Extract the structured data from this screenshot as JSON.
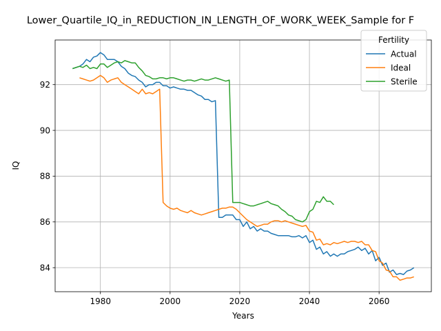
{
  "chart_data": {
    "type": "line",
    "title": "Lower_Quartile_IQ_in_REDUCTION_IN_LENGTH_OF_WORK_WEEK_Sample for F",
    "xlabel": "Years",
    "ylabel": "IQ",
    "xlim": [
      1967,
      2075
    ],
    "ylim": [
      82.95,
      93.95
    ],
    "xticks": [
      1980,
      2000,
      2020,
      2040,
      2060
    ],
    "yticks": [
      84,
      86,
      88,
      90,
      92
    ],
    "grid": true,
    "legend": {
      "title": "Fertility",
      "placement": "top-right"
    },
    "series": [
      {
        "name": "Actual",
        "color": "#1f77b4",
        "x": [
          1972,
          1974,
          1975,
          1976,
          1977,
          1978,
          1979,
          1980,
          1981,
          1982,
          1983,
          1984,
          1985,
          1986,
          1987,
          1988,
          1989,
          1990,
          1991,
          1992,
          1993,
          1994,
          1995,
          1996,
          1997,
          1998,
          1999,
          2000,
          2001,
          2002,
          2003,
          2004,
          2005,
          2006,
          2007,
          2008,
          2009,
          2010,
          2011,
          2012,
          2013,
          2014,
          2015,
          2016,
          2017,
          2018,
          2019,
          2020,
          2021,
          2022,
          2023,
          2024,
          2025,
          2026,
          2027,
          2028,
          2029,
          2030,
          2031,
          2032,
          2033,
          2034,
          2035,
          2036,
          2037,
          2038,
          2039,
          2040,
          2041,
          2042,
          2043,
          2044,
          2045,
          2046,
          2047,
          2048,
          2049,
          2050,
          2051,
          2052,
          2053,
          2054,
          2055,
          2056,
          2057,
          2058,
          2059,
          2060,
          2061,
          2062,
          2063,
          2064,
          2065,
          2066,
          2067,
          2068,
          2069,
          2070
        ],
        "y": [
          92.7,
          92.8,
          92.9,
          93.1,
          93.0,
          93.2,
          93.25,
          93.4,
          93.3,
          93.1,
          93.1,
          93.1,
          93.0,
          92.8,
          92.7,
          92.5,
          92.4,
          92.35,
          92.2,
          92.1,
          91.9,
          92.0,
          92.0,
          92.1,
          92.1,
          91.95,
          91.95,
          91.85,
          91.9,
          91.85,
          91.8,
          91.8,
          91.75,
          91.75,
          91.65,
          91.55,
          91.5,
          91.35,
          91.35,
          91.25,
          91.3,
          86.2,
          86.2,
          86.3,
          86.3,
          86.3,
          86.1,
          86.1,
          85.8,
          86.0,
          85.7,
          85.8,
          85.6,
          85.7,
          85.6,
          85.6,
          85.5,
          85.45,
          85.4,
          85.4,
          85.4,
          85.4,
          85.35,
          85.35,
          85.4,
          85.3,
          85.4,
          85.1,
          85.2,
          84.8,
          84.9,
          84.6,
          84.7,
          84.5,
          84.6,
          84.5,
          84.6,
          84.6,
          84.7,
          84.75,
          84.8,
          84.9,
          84.75,
          84.85,
          84.6,
          84.75,
          84.3,
          84.45,
          84.1,
          84.2,
          83.8,
          83.9,
          83.7,
          83.75,
          83.7,
          83.85,
          83.9,
          84.0
        ]
      },
      {
        "name": "Ideal",
        "color": "#ff7f0e",
        "x": [
          1974,
          1975,
          1976,
          1977,
          1978,
          1979,
          1980,
          1981,
          1982,
          1983,
          1984,
          1985,
          1986,
          1987,
          1988,
          1989,
          1990,
          1991,
          1992,
          1993,
          1994,
          1995,
          1996,
          1997,
          1998,
          1999,
          2000,
          2001,
          2002,
          2003,
          2004,
          2005,
          2006,
          2007,
          2008,
          2009,
          2010,
          2011,
          2012,
          2013,
          2014,
          2015,
          2016,
          2017,
          2018,
          2019,
          2020,
          2021,
          2022,
          2023,
          2024,
          2025,
          2026,
          2027,
          2028,
          2029,
          2030,
          2031,
          2032,
          2033,
          2034,
          2035,
          2036,
          2037,
          2038,
          2039,
          2040,
          2041,
          2042,
          2043,
          2044,
          2045,
          2046,
          2047,
          2048,
          2049,
          2050,
          2051,
          2052,
          2053,
          2054,
          2055,
          2056,
          2057,
          2058,
          2059,
          2060,
          2061,
          2062,
          2063,
          2064,
          2065,
          2066,
          2067,
          2068,
          2069,
          2070
        ],
        "y": [
          92.3,
          92.25,
          92.2,
          92.15,
          92.2,
          92.3,
          92.4,
          92.3,
          92.1,
          92.2,
          92.25,
          92.3,
          92.1,
          92.0,
          91.9,
          91.8,
          91.7,
          91.6,
          91.8,
          91.6,
          91.65,
          91.6,
          91.7,
          91.8,
          86.85,
          86.7,
          86.6,
          86.55,
          86.6,
          86.5,
          86.45,
          86.4,
          86.5,
          86.4,
          86.35,
          86.3,
          86.35,
          86.4,
          86.45,
          86.5,
          86.55,
          86.6,
          86.6,
          86.65,
          86.65,
          86.55,
          86.4,
          86.25,
          86.1,
          86.0,
          85.9,
          85.8,
          85.85,
          85.9,
          85.9,
          86.0,
          86.05,
          86.05,
          86.0,
          86.05,
          86.0,
          85.95,
          85.9,
          85.85,
          85.8,
          85.85,
          85.6,
          85.55,
          85.2,
          85.25,
          85.0,
          85.05,
          85.0,
          85.1,
          85.05,
          85.1,
          85.15,
          85.1,
          85.15,
          85.15,
          85.1,
          85.15,
          85.0,
          85.0,
          84.75,
          84.7,
          84.3,
          84.2,
          83.9,
          83.85,
          83.6,
          83.6,
          83.45,
          83.5,
          83.55,
          83.55,
          83.6
        ]
      },
      {
        "name": "Sterile",
        "color": "#2ca02c",
        "x": [
          1972,
          1974,
          1975,
          1976,
          1977,
          1978,
          1979,
          1980,
          1981,
          1982,
          1983,
          1984,
          1985,
          1986,
          1987,
          1988,
          1989,
          1990,
          1991,
          1992,
          1993,
          1994,
          1995,
          1996,
          1997,
          1998,
          1999,
          2000,
          2001,
          2002,
          2003,
          2004,
          2005,
          2006,
          2007,
          2008,
          2009,
          2010,
          2011,
          2012,
          2013,
          2014,
          2015,
          2016,
          2017,
          2018,
          2019,
          2020,
          2021,
          2022,
          2023,
          2024,
          2025,
          2026,
          2027,
          2028,
          2029,
          2030,
          2031,
          2032,
          2033,
          2034,
          2035,
          2036,
          2037,
          2038,
          2039,
          2040,
          2041,
          2042,
          2043,
          2044,
          2045,
          2046,
          2047
        ],
        "y": [
          92.7,
          92.8,
          92.75,
          92.85,
          92.7,
          92.75,
          92.7,
          92.9,
          92.9,
          92.75,
          92.85,
          92.95,
          93.0,
          92.95,
          93.05,
          93.0,
          92.95,
          92.95,
          92.75,
          92.6,
          92.4,
          92.35,
          92.25,
          92.25,
          92.3,
          92.3,
          92.25,
          92.3,
          92.3,
          92.25,
          92.2,
          92.15,
          92.2,
          92.2,
          92.15,
          92.2,
          92.25,
          92.2,
          92.2,
          92.25,
          92.3,
          92.25,
          92.2,
          92.15,
          92.2,
          86.85,
          86.85,
          86.85,
          86.8,
          86.75,
          86.7,
          86.7,
          86.75,
          86.8,
          86.85,
          86.9,
          86.8,
          86.75,
          86.7,
          86.55,
          86.45,
          86.3,
          86.25,
          86.1,
          86.05,
          86.0,
          86.1,
          86.45,
          86.55,
          86.9,
          86.85,
          87.1,
          86.9,
          86.9,
          86.75
        ]
      }
    ]
  }
}
